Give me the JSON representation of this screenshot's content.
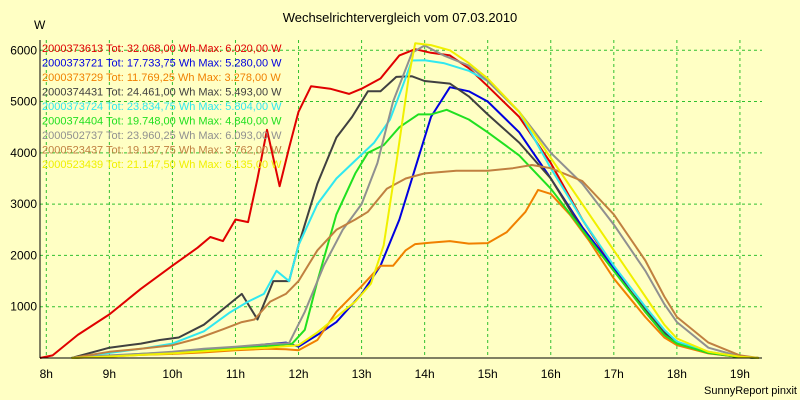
{
  "chart_data": {
    "type": "line",
    "title": "Wechselrichtervergleich vom 07.03.2010",
    "ylabel": "W",
    "xlabel": "",
    "footer": "SunnyReport pinxit",
    "xlim": [
      7.9,
      19.35
    ],
    "ylim": [
      0,
      6200
    ],
    "x_ticks": [
      8,
      9,
      10,
      11,
      12,
      13,
      14,
      15,
      16,
      17,
      18,
      19
    ],
    "x_tick_labels": [
      "8h",
      "9h",
      "10h",
      "11h",
      "12h",
      "13h",
      "14h",
      "15h",
      "16h",
      "17h",
      "18h",
      "19h"
    ],
    "y_ticks": [
      1000,
      2000,
      3000,
      4000,
      5000,
      6000
    ],
    "y_tick_labels": [
      "1000",
      "2000",
      "3000",
      "4000",
      "5000",
      "6000"
    ],
    "grid": true,
    "legend_position": "top-left",
    "series": [
      {
        "name": "2000373613 Tot: 32.068,00 Wh Max: 6.020,00 W",
        "color": "#e00000",
        "points": [
          [
            7.9,
            0
          ],
          [
            8.1,
            50
          ],
          [
            8.5,
            450
          ],
          [
            9.0,
            850
          ],
          [
            9.5,
            1350
          ],
          [
            10.0,
            1800
          ],
          [
            10.4,
            2150
          ],
          [
            10.6,
            2360
          ],
          [
            10.8,
            2280
          ],
          [
            11.0,
            2700
          ],
          [
            11.2,
            2650
          ],
          [
            11.35,
            3500
          ],
          [
            11.5,
            4450
          ],
          [
            11.7,
            3350
          ],
          [
            11.85,
            4100
          ],
          [
            12.0,
            4800
          ],
          [
            12.2,
            5300
          ],
          [
            12.5,
            5250
          ],
          [
            12.8,
            5150
          ],
          [
            13.0,
            5250
          ],
          [
            13.3,
            5450
          ],
          [
            13.6,
            5900
          ],
          [
            13.85,
            6020
          ],
          [
            14.1,
            5950
          ],
          [
            14.4,
            5900
          ],
          [
            14.7,
            5650
          ],
          [
            15.0,
            5300
          ],
          [
            15.5,
            4700
          ],
          [
            16.0,
            3800
          ],
          [
            16.5,
            2700
          ],
          [
            17.0,
            1750
          ],
          [
            17.5,
            900
          ],
          [
            17.8,
            500
          ],
          [
            18.0,
            280
          ],
          [
            18.5,
            100
          ],
          [
            19.0,
            20
          ],
          [
            19.3,
            0
          ]
        ]
      },
      {
        "name": "2000373721 Tot: 17.733,75 Wh Max: 5.280,00 W",
        "color": "#0000e0",
        "points": [
          [
            8.4,
            0
          ],
          [
            9.0,
            40
          ],
          [
            9.5,
            70
          ],
          [
            10.0,
            100
          ],
          [
            10.5,
            150
          ],
          [
            11.0,
            200
          ],
          [
            11.5,
            270
          ],
          [
            11.8,
            300
          ],
          [
            12.0,
            220
          ],
          [
            12.3,
            450
          ],
          [
            12.6,
            700
          ],
          [
            13.0,
            1250
          ],
          [
            13.3,
            1800
          ],
          [
            13.6,
            2700
          ],
          [
            13.85,
            3700
          ],
          [
            14.1,
            4700
          ],
          [
            14.4,
            5280
          ],
          [
            14.7,
            5200
          ],
          [
            15.0,
            5000
          ],
          [
            15.5,
            4400
          ],
          [
            16.0,
            3500
          ],
          [
            16.5,
            2550
          ],
          [
            17.0,
            1750
          ],
          [
            17.5,
            900
          ],
          [
            17.8,
            450
          ],
          [
            18.0,
            270
          ],
          [
            18.5,
            100
          ],
          [
            19.0,
            20
          ],
          [
            19.3,
            0
          ]
        ]
      },
      {
        "name": "2000373729 Tot: 11.769,25 Wh Max: 3.278,00 W",
        "color": "#f08000",
        "points": [
          [
            8.4,
            0
          ],
          [
            9.0,
            30
          ],
          [
            9.5,
            60
          ],
          [
            10.0,
            80
          ],
          [
            10.5,
            110
          ],
          [
            11.0,
            150
          ],
          [
            11.5,
            180
          ],
          [
            11.8,
            170
          ],
          [
            12.0,
            150
          ],
          [
            12.3,
            350
          ],
          [
            12.6,
            900
          ],
          [
            13.0,
            1400
          ],
          [
            13.3,
            1800
          ],
          [
            13.5,
            1800
          ],
          [
            13.7,
            2100
          ],
          [
            13.85,
            2220
          ],
          [
            14.1,
            2250
          ],
          [
            14.4,
            2280
          ],
          [
            14.7,
            2230
          ],
          [
            15.0,
            2240
          ],
          [
            15.3,
            2450
          ],
          [
            15.6,
            2850
          ],
          [
            15.8,
            3278
          ],
          [
            16.0,
            3200
          ],
          [
            16.3,
            2800
          ],
          [
            16.6,
            2300
          ],
          [
            17.0,
            1550
          ],
          [
            17.5,
            800
          ],
          [
            17.8,
            400
          ],
          [
            18.0,
            250
          ],
          [
            18.5,
            90
          ],
          [
            19.0,
            20
          ],
          [
            19.3,
            0
          ]
        ]
      },
      {
        "name": "2000374431 Tot: 24.461,00 Wh Max: 5.493,00 W",
        "color": "#404040",
        "points": [
          [
            8.4,
            0
          ],
          [
            9.0,
            200
          ],
          [
            9.5,
            280
          ],
          [
            9.8,
            350
          ],
          [
            10.1,
            400
          ],
          [
            10.5,
            650
          ],
          [
            10.9,
            1050
          ],
          [
            11.1,
            1250
          ],
          [
            11.35,
            750
          ],
          [
            11.6,
            1500
          ],
          [
            11.85,
            1500
          ],
          [
            12.0,
            2200
          ],
          [
            12.3,
            3400
          ],
          [
            12.6,
            4300
          ],
          [
            12.85,
            4700
          ],
          [
            13.1,
            5200
          ],
          [
            13.3,
            5200
          ],
          [
            13.55,
            5480
          ],
          [
            13.8,
            5493
          ],
          [
            14.0,
            5400
          ],
          [
            14.4,
            5350
          ],
          [
            14.7,
            5100
          ],
          [
            15.0,
            4750
          ],
          [
            15.5,
            4200
          ],
          [
            16.0,
            3500
          ],
          [
            16.5,
            2500
          ],
          [
            17.0,
            1700
          ],
          [
            17.5,
            950
          ],
          [
            17.8,
            500
          ],
          [
            18.0,
            300
          ],
          [
            18.5,
            100
          ],
          [
            19.0,
            20
          ],
          [
            19.3,
            0
          ]
        ]
      },
      {
        "name": "2000373724 Tot: 23.834,75 Wh Max: 5.804,00 W",
        "color": "#30e8f0",
        "points": [
          [
            8.4,
            0
          ],
          [
            9.0,
            100
          ],
          [
            9.5,
            180
          ],
          [
            10.0,
            280
          ],
          [
            10.5,
            520
          ],
          [
            10.9,
            880
          ],
          [
            11.2,
            1100
          ],
          [
            11.45,
            1250
          ],
          [
            11.65,
            1700
          ],
          [
            11.85,
            1500
          ],
          [
            12.0,
            2200
          ],
          [
            12.3,
            3000
          ],
          [
            12.6,
            3500
          ],
          [
            12.9,
            3850
          ],
          [
            13.2,
            4200
          ],
          [
            13.45,
            4650
          ],
          [
            13.65,
            5300
          ],
          [
            13.8,
            5800
          ],
          [
            14.0,
            5804
          ],
          [
            14.3,
            5750
          ],
          [
            14.7,
            5600
          ],
          [
            15.0,
            5400
          ],
          [
            15.5,
            4800
          ],
          [
            16.0,
            3700
          ],
          [
            16.5,
            2700
          ],
          [
            17.0,
            1800
          ],
          [
            17.5,
            1000
          ],
          [
            17.8,
            550
          ],
          [
            18.0,
            320
          ],
          [
            18.5,
            120
          ],
          [
            19.0,
            25
          ],
          [
            19.3,
            0
          ]
        ]
      },
      {
        "name": "2000374404 Tot: 19.748,00 Wh Max: 4.840,00 W",
        "color": "#20e020",
        "points": [
          [
            8.4,
            0
          ],
          [
            9.0,
            40
          ],
          [
            9.5,
            80
          ],
          [
            10.0,
            110
          ],
          [
            10.5,
            150
          ],
          [
            11.0,
            190
          ],
          [
            11.5,
            230
          ],
          [
            11.9,
            280
          ],
          [
            12.1,
            550
          ],
          [
            12.3,
            1500
          ],
          [
            12.6,
            2800
          ],
          [
            12.9,
            3600
          ],
          [
            13.1,
            4000
          ],
          [
            13.35,
            4150
          ],
          [
            13.6,
            4500
          ],
          [
            13.9,
            4750
          ],
          [
            14.1,
            4750
          ],
          [
            14.35,
            4840
          ],
          [
            14.7,
            4650
          ],
          [
            15.0,
            4400
          ],
          [
            15.5,
            3950
          ],
          [
            16.0,
            3300
          ],
          [
            16.5,
            2500
          ],
          [
            17.0,
            1700
          ],
          [
            17.5,
            900
          ],
          [
            17.8,
            450
          ],
          [
            18.0,
            280
          ],
          [
            18.5,
            100
          ],
          [
            19.0,
            20
          ],
          [
            19.3,
            0
          ]
        ]
      },
      {
        "name": "2000502737 Tot: 23.960,25 Wh Max: 6.093,00 W",
        "color": "#909090",
        "points": [
          [
            8.4,
            0
          ],
          [
            9.0,
            50
          ],
          [
            9.5,
            80
          ],
          [
            10.0,
            120
          ],
          [
            10.5,
            180
          ],
          [
            11.0,
            220
          ],
          [
            11.5,
            270
          ],
          [
            11.85,
            290
          ],
          [
            12.1,
            900
          ],
          [
            12.4,
            1800
          ],
          [
            12.7,
            2500
          ],
          [
            13.0,
            3000
          ],
          [
            13.25,
            3800
          ],
          [
            13.5,
            5000
          ],
          [
            13.8,
            5950
          ],
          [
            14.0,
            6093
          ],
          [
            14.3,
            5900
          ],
          [
            14.7,
            5700
          ],
          [
            15.0,
            5400
          ],
          [
            15.5,
            4800
          ],
          [
            16.0,
            4000
          ],
          [
            16.5,
            3400
          ],
          [
            17.0,
            2600
          ],
          [
            17.5,
            1700
          ],
          [
            17.8,
            1050
          ],
          [
            18.0,
            700
          ],
          [
            18.5,
            200
          ],
          [
            19.0,
            30
          ],
          [
            19.3,
            0
          ]
        ]
      },
      {
        "name": "2000523437 Tot: 19.137,75 Wh Max: 3.762,00 W",
        "color": "#c08040",
        "points": [
          [
            8.4,
            0
          ],
          [
            9.0,
            120
          ],
          [
            9.5,
            180
          ],
          [
            10.0,
            250
          ],
          [
            10.4,
            380
          ],
          [
            10.8,
            560
          ],
          [
            11.1,
            700
          ],
          [
            11.3,
            750
          ],
          [
            11.55,
            1100
          ],
          [
            11.8,
            1250
          ],
          [
            12.0,
            1500
          ],
          [
            12.3,
            2100
          ],
          [
            12.6,
            2500
          ],
          [
            12.9,
            2700
          ],
          [
            13.1,
            2850
          ],
          [
            13.4,
            3300
          ],
          [
            13.7,
            3500
          ],
          [
            14.0,
            3600
          ],
          [
            14.5,
            3650
          ],
          [
            15.0,
            3650
          ],
          [
            15.4,
            3700
          ],
          [
            15.7,
            3762
          ],
          [
            16.0,
            3700
          ],
          [
            16.5,
            3450
          ],
          [
            17.0,
            2800
          ],
          [
            17.5,
            1900
          ],
          [
            17.8,
            1200
          ],
          [
            18.0,
            800
          ],
          [
            18.5,
            300
          ],
          [
            19.0,
            50
          ],
          [
            19.3,
            0
          ]
        ]
      },
      {
        "name": "2000523439 Tot: 21.147,50 Wh Max: 6.135,00 W",
        "color": "#f0f000",
        "points": [
          [
            8.4,
            0
          ],
          [
            9.0,
            30
          ],
          [
            9.5,
            60
          ],
          [
            10.0,
            90
          ],
          [
            10.5,
            130
          ],
          [
            11.0,
            170
          ],
          [
            11.5,
            200
          ],
          [
            12.0,
            250
          ],
          [
            12.3,
            500
          ],
          [
            12.6,
            800
          ],
          [
            12.9,
            1100
          ],
          [
            13.15,
            1450
          ],
          [
            13.35,
            2200
          ],
          [
            13.55,
            3800
          ],
          [
            13.75,
            5500
          ],
          [
            13.85,
            6135
          ],
          [
            14.1,
            6100
          ],
          [
            14.4,
            6000
          ],
          [
            14.7,
            5750
          ],
          [
            15.0,
            5450
          ],
          [
            15.5,
            4800
          ],
          [
            16.0,
            3900
          ],
          [
            16.5,
            3000
          ],
          [
            17.0,
            2100
          ],
          [
            17.5,
            1200
          ],
          [
            17.8,
            650
          ],
          [
            18.0,
            380
          ],
          [
            18.5,
            120
          ],
          [
            19.0,
            25
          ],
          [
            19.3,
            0
          ]
        ]
      }
    ]
  }
}
